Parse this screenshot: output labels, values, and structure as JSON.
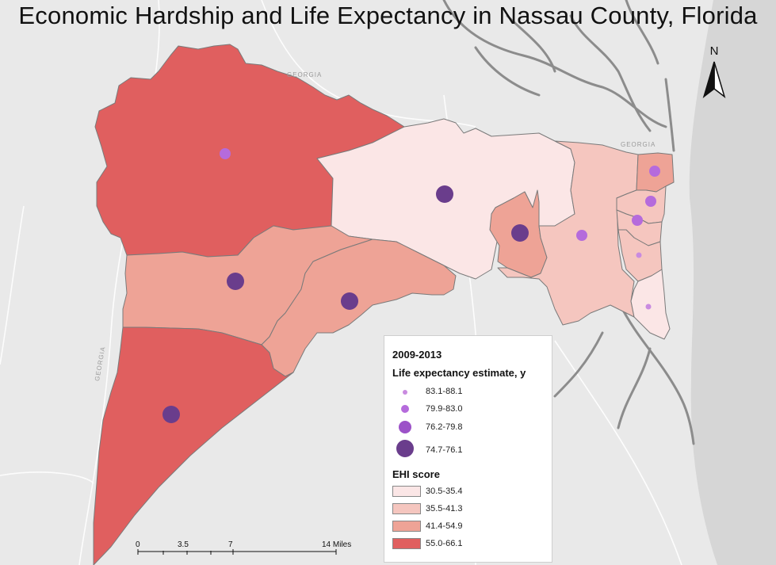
{
  "title": "Economic Hardship and Life Expectancy in Nassau County, Florida",
  "colors": {
    "background": "#e9e9e9",
    "water": "#8c8c8c",
    "ocean": "#d6d6d6",
    "ehi_class_1": "#fbe6e6",
    "ehi_class_2": "#f5c6bf",
    "ehi_class_3": "#eea396",
    "ehi_class_4": "#e05f5f",
    "le_class_1": "#c98be0",
    "le_class_2": "#b56bdc",
    "le_class_3": "#9c52c8",
    "le_class_4": "#6a3d8c",
    "boundary": "#7a7a7a"
  },
  "legend": {
    "period": "2009-2013",
    "life_heading": "Life expectancy estimate, y",
    "life_items": [
      {
        "label": "83.1-88.1",
        "class": 1
      },
      {
        "label": "79.9-83.0",
        "class": 2
      },
      {
        "label": "76.2-79.8",
        "class": 3
      },
      {
        "label": "74.7-76.1",
        "class": 4
      }
    ],
    "ehi_heading": "EHI score",
    "ehi_items": [
      {
        "label": "30.5-35.4",
        "class": 1
      },
      {
        "label": "35.5-41.3",
        "class": 2
      },
      {
        "label": "41.4-54.9",
        "class": 3
      },
      {
        "label": "55.0-66.1",
        "class": 4
      }
    ]
  },
  "north_arrow": {
    "letter": "N"
  },
  "scale_bar": {
    "labels": [
      "0",
      "3.5",
      "7",
      "14 Miles"
    ]
  },
  "map_labels": {
    "georgia": "GEORGIA"
  },
  "tracts": [
    {
      "name": "tract-northwest",
      "ehi_class": 4,
      "life_class": 2
    },
    {
      "name": "tract-central-north",
      "ehi_class": 1,
      "life_class": 4
    },
    {
      "name": "tract-yulee",
      "ehi_class": 3,
      "life_class": 4
    },
    {
      "name": "tract-east-central",
      "ehi_class": 2,
      "life_class": 2
    },
    {
      "name": "tract-west-central",
      "ehi_class": 3,
      "life_class": 4
    },
    {
      "name": "tract-central-south",
      "ehi_class": 3,
      "life_class": 4
    },
    {
      "name": "tract-southwest",
      "ehi_class": 4,
      "life_class": 4
    },
    {
      "name": "tract-amelia-north",
      "ehi_class": 3,
      "life_class": 2
    },
    {
      "name": "tract-amelia-1",
      "ehi_class": 2,
      "life_class": 2
    },
    {
      "name": "tract-amelia-2",
      "ehi_class": 2,
      "life_class": 2
    },
    {
      "name": "tract-amelia-3",
      "ehi_class": 2,
      "life_class": 1
    },
    {
      "name": "tract-amelia-south",
      "ehi_class": 1,
      "life_class": 1
    }
  ]
}
